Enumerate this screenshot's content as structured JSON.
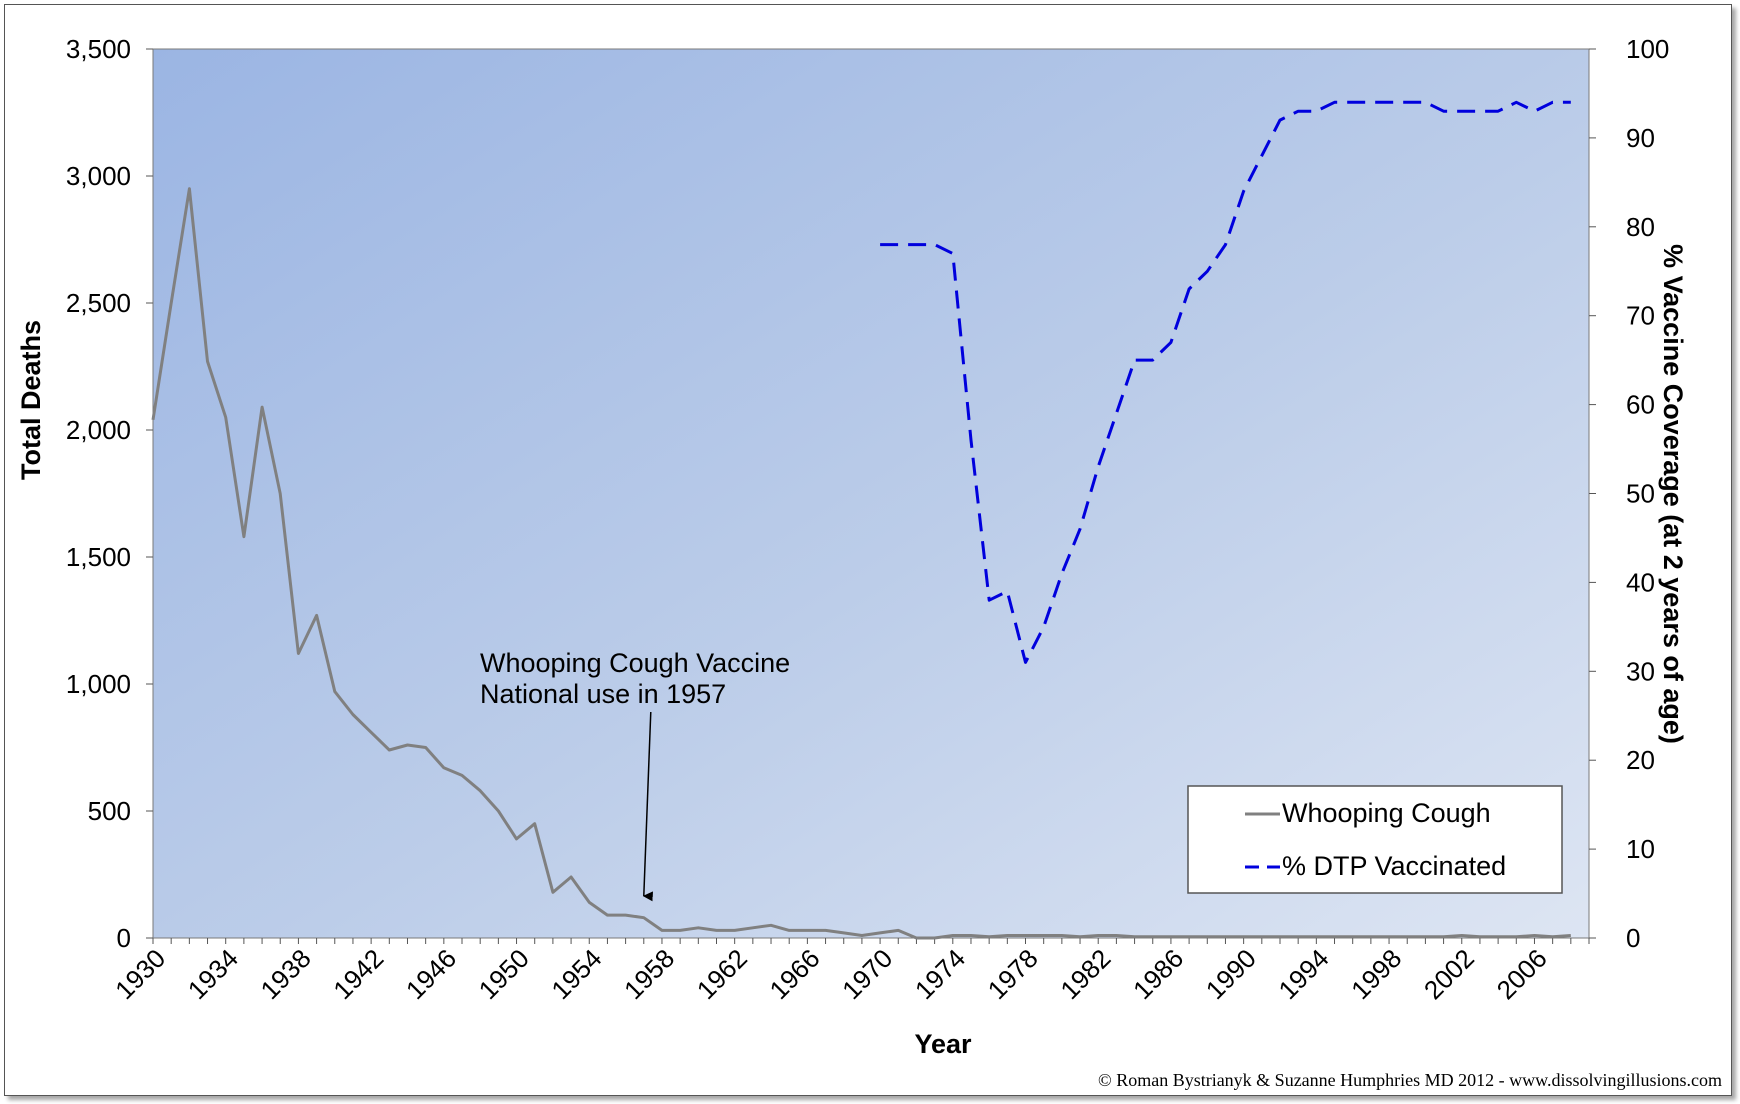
{
  "chart_data": {
    "type": "line",
    "xlabel": "Year",
    "ylabel": "Total Deaths",
    "y2label": "% Vaccine Coverage (at 2 years of age)",
    "xlim": [
      1930,
      2009
    ],
    "ylim": [
      0,
      3500
    ],
    "y2lim": [
      0,
      100
    ],
    "x_ticks": [
      "1930",
      "1934",
      "1938",
      "1942",
      "1946",
      "1950",
      "1954",
      "1958",
      "1962",
      "1966",
      "1970",
      "1974",
      "1978",
      "1982",
      "1986",
      "1990",
      "1994",
      "1998",
      "2002",
      "2006"
    ],
    "y_ticks": [
      "0",
      "500",
      "1,000",
      "1,500",
      "2,000",
      "2,500",
      "3,000",
      "3,500"
    ],
    "y2_ticks": [
      "0",
      "10",
      "20",
      "30",
      "40",
      "50",
      "60",
      "70",
      "80",
      "90",
      "100"
    ],
    "grid": false,
    "legend_position": "lower-right",
    "series": [
      {
        "name": "Whooping Cough",
        "axis": "left",
        "color": "#808080",
        "style": "solid",
        "x": [
          1930,
          1931,
          1932,
          1933,
          1934,
          1935,
          1936,
          1937,
          1938,
          1939,
          1940,
          1941,
          1942,
          1943,
          1944,
          1945,
          1946,
          1947,
          1948,
          1949,
          1950,
          1951,
          1952,
          1953,
          1954,
          1955,
          1956,
          1957,
          1958,
          1959,
          1960,
          1961,
          1962,
          1963,
          1964,
          1965,
          1966,
          1967,
          1968,
          1969,
          1970,
          1971,
          1972,
          1973,
          1974,
          1975,
          1976,
          1977,
          1978,
          1979,
          1980,
          1981,
          1982,
          1983,
          1984,
          1985,
          1986,
          1987,
          1988,
          1989,
          1990,
          1991,
          1992,
          1993,
          1994,
          1995,
          1996,
          1997,
          1998,
          1999,
          2000,
          2001,
          2002,
          2003,
          2004,
          2005,
          2006,
          2007,
          2008
        ],
        "values": [
          2040,
          2500,
          2950,
          2270,
          2050,
          1580,
          2090,
          1750,
          1120,
          1270,
          970,
          880,
          810,
          740,
          760,
          750,
          670,
          640,
          580,
          500,
          390,
          450,
          180,
          240,
          140,
          90,
          90,
          80,
          30,
          30,
          40,
          30,
          30,
          40,
          50,
          30,
          30,
          30,
          20,
          10,
          20,
          30,
          0,
          0,
          10,
          10,
          5,
          10,
          10,
          10,
          10,
          5,
          10,
          10,
          5,
          5,
          5,
          5,
          5,
          5,
          5,
          5,
          5,
          5,
          5,
          5,
          5,
          5,
          5,
          5,
          5,
          5,
          10,
          5,
          5,
          5,
          10,
          5,
          10
        ]
      },
      {
        "name": "% DTP Vaccinated",
        "axis": "right",
        "color": "#0000dd",
        "style": "dashed",
        "x": [
          1970,
          1971,
          1972,
          1973,
          1974,
          1975,
          1976,
          1977,
          1978,
          1979,
          1980,
          1981,
          1982,
          1983,
          1984,
          1985,
          1986,
          1987,
          1988,
          1989,
          1990,
          1991,
          1992,
          1993,
          1994,
          1995,
          1996,
          1997,
          1998,
          1999,
          2000,
          2001,
          2002,
          2003,
          2004,
          2005,
          2006,
          2007,
          2008
        ],
        "values": [
          78,
          78,
          78,
          78,
          77,
          56,
          38,
          39,
          31,
          35,
          41,
          46,
          53,
          59,
          65,
          65,
          67,
          73,
          75,
          78,
          84,
          88,
          92,
          93,
          93,
          94,
          94,
          94,
          94,
          94,
          94,
          93,
          93,
          93,
          93,
          94,
          93,
          94,
          94
        ]
      }
    ],
    "annotations": [
      {
        "text": [
          "Whooping Cough Vaccine",
          "National use  in 1957"
        ],
        "points_to_x": 1957
      }
    ]
  },
  "copyright": "© Roman Bystrianyk & Suzanne Humphries MD 2012 - www.dissolvingillusions.com"
}
